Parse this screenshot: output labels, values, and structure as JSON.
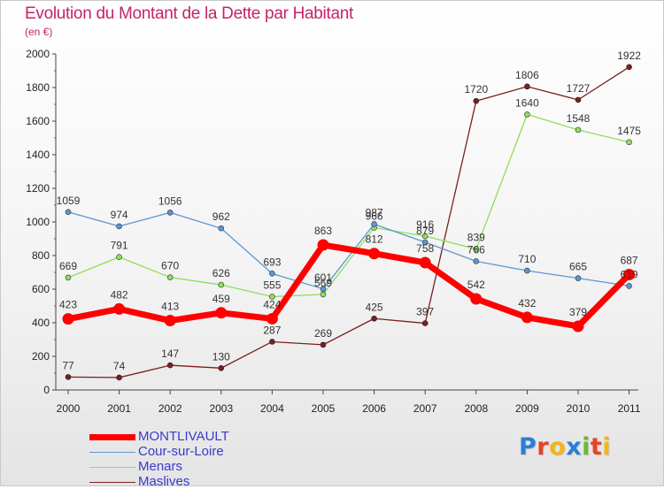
{
  "title": "Evolution du Montant de la Dette par Habitant",
  "unit_label": "(en €)",
  "logo": {
    "text": "Proxiti",
    "letters": [
      "P",
      "r",
      "o",
      "x",
      "i",
      "t",
      "i"
    ],
    "colors": [
      "#2a7fd4",
      "#e8432a",
      "#f2b51b",
      "#2a7fd4",
      "#6cba2c",
      "#e8432a",
      "#f2b51b"
    ]
  },
  "chart_data": {
    "type": "line",
    "x": [
      "2000",
      "2001",
      "2002",
      "2003",
      "2004",
      "2005",
      "2006",
      "2007",
      "2008",
      "2009",
      "2010",
      "2011"
    ],
    "ylim": [
      0,
      2000
    ],
    "yticks": [
      "0",
      "200",
      "400",
      "600",
      "800",
      "1000",
      "1200",
      "1400",
      "1600",
      "1800",
      "2000"
    ],
    "grid": false,
    "legend_position": "bottom-left",
    "series": [
      {
        "name": "MONTLIVAULT",
        "color": "#ff0000",
        "values": [
          423,
          482,
          413,
          459,
          424,
          863,
          812,
          758,
          542,
          432,
          379,
          687
        ],
        "labels": [
          "423",
          "482",
          "413",
          "459",
          "424",
          "863",
          "812",
          "758",
          "542",
          "432",
          "379",
          "687"
        ]
      },
      {
        "name": "Cour-sur-Loire",
        "color": "#5b97d4",
        "values": [
          1059,
          974,
          1056,
          962,
          693,
          601,
          987,
          879,
          766,
          710,
          665,
          619
        ],
        "labels": [
          "1059",
          "974",
          "1056",
          "962",
          "693",
          "601",
          "987",
          "879",
          "766",
          "710",
          "665",
          "619"
        ]
      },
      {
        "name": "Menars",
        "color": "#8fde5c",
        "values": [
          669,
          791,
          670,
          626,
          555,
          569,
          966,
          916,
          839,
          1640,
          1548,
          1475
        ],
        "labels": [
          "669",
          "791",
          "670",
          "626",
          "555",
          "569",
          "966",
          "916",
          "839",
          "1640",
          "1548",
          "1475"
        ]
      },
      {
        "name": "Maslives",
        "color": "#7a1f1f",
        "values": [
          77,
          74,
          147,
          130,
          287,
          269,
          425,
          397,
          1720,
          1806,
          1727,
          1922
        ],
        "labels": [
          "77",
          "74",
          "147",
          "130",
          "287",
          "269",
          "425",
          "397",
          "1720",
          "1806",
          "1727",
          "1922"
        ]
      }
    ]
  }
}
